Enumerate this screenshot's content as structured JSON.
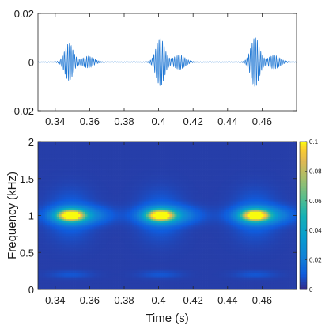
{
  "chart_data": [
    {
      "type": "line",
      "panel": "waveform",
      "title": "",
      "xlabel": "",
      "ylabel": "",
      "xlim": [
        0.33,
        0.48
      ],
      "ylim": [
        -0.02,
        0.02
      ],
      "xticks": [
        0.34,
        0.36,
        0.38,
        0.4,
        0.42,
        0.44,
        0.46
      ],
      "xtick_labels": [
        "0.34",
        "0.36",
        "0.38",
        "0.4",
        "0.42",
        "0.44",
        "0.46"
      ],
      "yticks": [
        0.02,
        0,
        -0.02
      ],
      "ytick_labels": [
        "0.02",
        "0",
        "-0.02"
      ],
      "grid": false,
      "line_color": "#1f77d4",
      "bursts": [
        {
          "center": 0.348,
          "amplitude": 0.0075,
          "tail_amplitude": 0.0022
        },
        {
          "center": 0.401,
          "amplitude": 0.0097,
          "tail_amplitude": 0.0028
        },
        {
          "center": 0.456,
          "amplitude": 0.01,
          "tail_amplitude": 0.0026
        }
      ],
      "carrier_frequency_hz": 1000
    },
    {
      "type": "heatmap",
      "panel": "spectrogram",
      "title": "",
      "xlabel": "Time (s)",
      "ylabel": "Frequency (kHz)",
      "xlim": [
        0.33,
        0.48
      ],
      "ylim": [
        0,
        2
      ],
      "xticks": [
        0.34,
        0.36,
        0.38,
        0.4,
        0.42,
        0.44,
        0.46
      ],
      "xtick_labels": [
        "0.34",
        "0.36",
        "0.38",
        "0.4",
        "0.42",
        "0.44",
        "0.46"
      ],
      "yticks": [
        2,
        1.5,
        1,
        0.5,
        0
      ],
      "ytick_labels": [
        "2",
        "1.5",
        "1",
        "0.5",
        "0"
      ],
      "colorbar": {
        "range": [
          0,
          0.1
        ],
        "ticks": [
          0.1,
          0.08,
          0.06,
          0.04,
          0.02,
          0
        ],
        "tick_labels": [
          "0.1",
          "0.08",
          "0.06",
          "0.04",
          "0.02",
          "0"
        ]
      },
      "background_level": 0.004,
      "blobs": [
        {
          "time": 0.349,
          "freq_khz": 1.0,
          "peak": 0.1
        },
        {
          "time": 0.401,
          "freq_khz": 1.0,
          "peak": 0.1
        },
        {
          "time": 0.456,
          "freq_khz": 1.0,
          "peak": 0.1
        }
      ],
      "low_band_freq_khz": 0.2,
      "colormap": "parula"
    }
  ]
}
